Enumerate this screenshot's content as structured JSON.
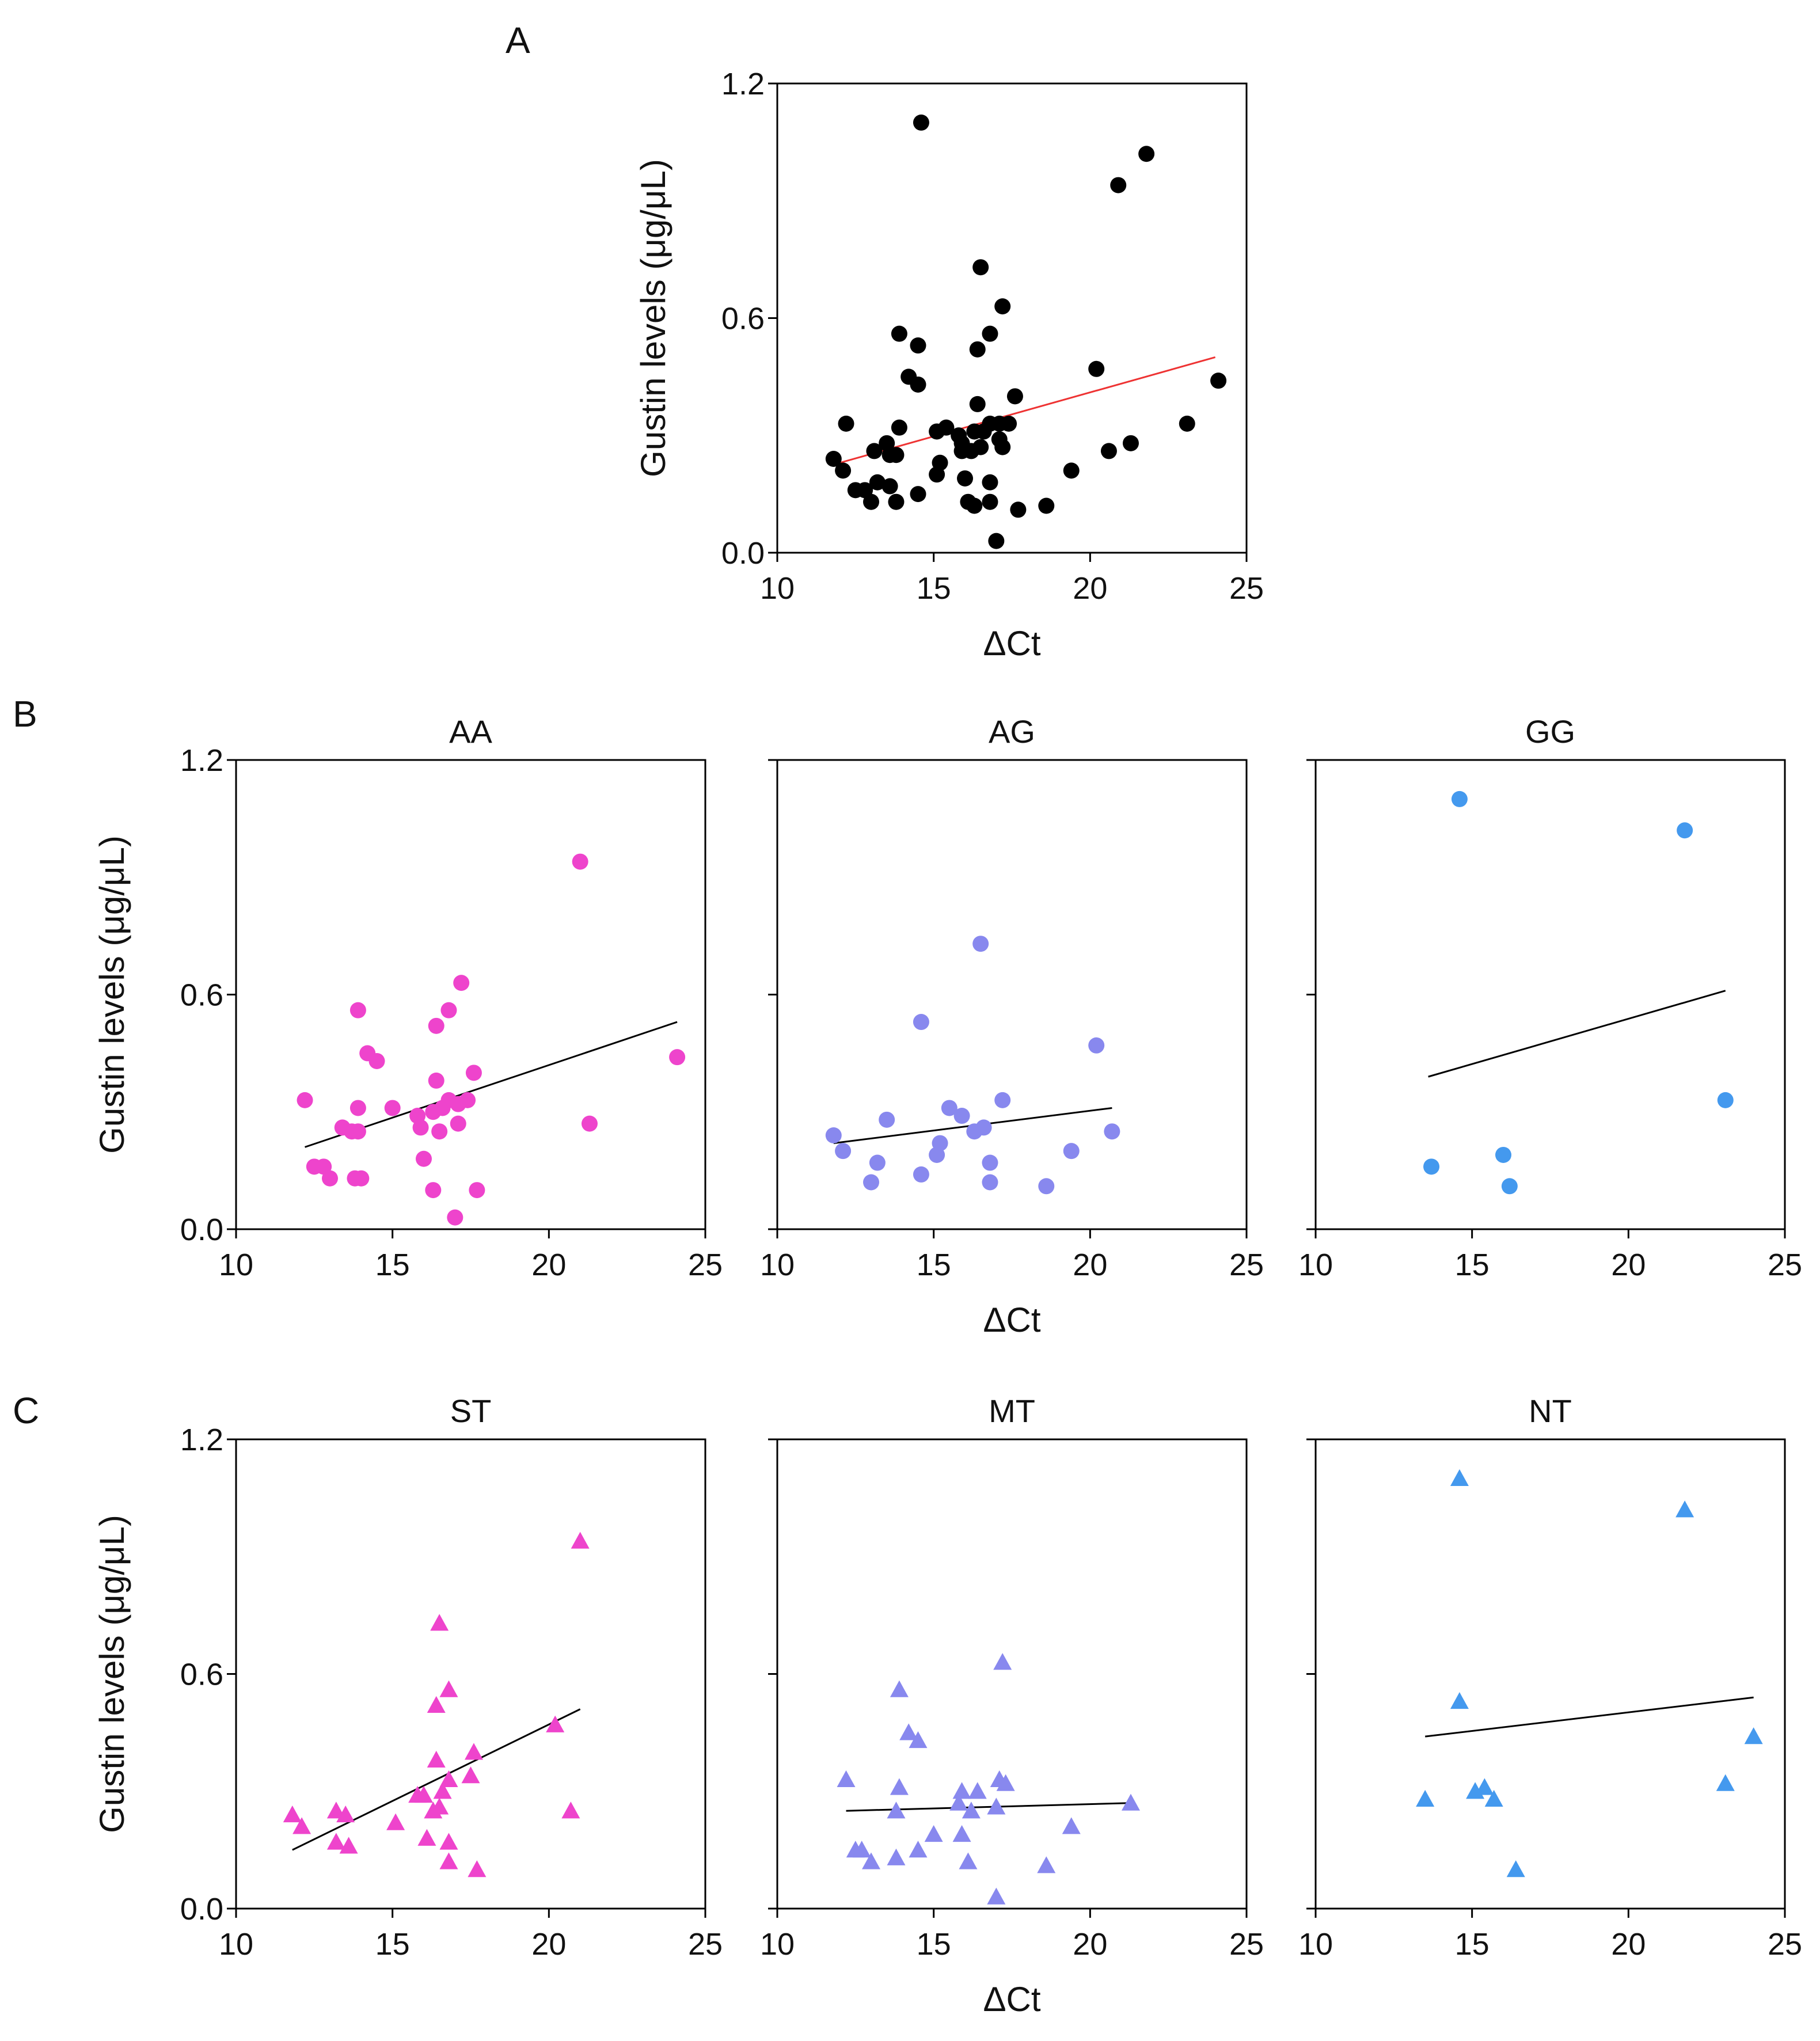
{
  "colors": {
    "black": "#000000",
    "pink": "#ee44cc",
    "lavender": "#8888ee",
    "blue": "#4499ee",
    "red_line": "#ee3333",
    "fit_line": "#000000"
  },
  "panel_labels": {
    "A": "A",
    "B": "B",
    "C": "C"
  },
  "chart_data": [
    {
      "id": "A",
      "type": "scatter",
      "title": "",
      "xlabel": "ΔCt",
      "ylabel": "Gustin levels (μg/μL)",
      "xlim": [
        10,
        25
      ],
      "ylim": [
        0,
        1.2
      ],
      "xticks": [
        10,
        15,
        20,
        25
      ],
      "xtick_labels": [
        "10",
        "15",
        "20",
        "25"
      ],
      "yticks": [
        0,
        0.6,
        1.2
      ],
      "ytick_labels": [
        "0.0",
        "0.6",
        "1.2"
      ],
      "marker": "circle",
      "color_key": "black",
      "line_color_key": "red_line",
      "fit": [
        [
          12,
          0.23
        ],
        [
          24,
          0.5
        ]
      ],
      "points": [
        [
          14.6,
          1.1
        ],
        [
          21.8,
          1.02
        ],
        [
          20.9,
          0.94
        ],
        [
          16.5,
          0.73
        ],
        [
          17.2,
          0.63
        ],
        [
          13.9,
          0.56
        ],
        [
          16.8,
          0.56
        ],
        [
          14.5,
          0.53
        ],
        [
          16.4,
          0.52
        ],
        [
          20.2,
          0.47
        ],
        [
          14.2,
          0.45
        ],
        [
          14.5,
          0.43
        ],
        [
          24.1,
          0.44
        ],
        [
          17.6,
          0.4
        ],
        [
          16.4,
          0.38
        ],
        [
          12.2,
          0.33
        ],
        [
          13.9,
          0.32
        ],
        [
          15.1,
          0.31
        ],
        [
          15.4,
          0.32
        ],
        [
          16.8,
          0.33
        ],
        [
          17.1,
          0.33
        ],
        [
          17.4,
          0.33
        ],
        [
          23.1,
          0.33
        ],
        [
          15.8,
          0.3
        ],
        [
          16.3,
          0.31
        ],
        [
          16.6,
          0.31
        ],
        [
          13.5,
          0.28
        ],
        [
          15.9,
          0.28
        ],
        [
          17.1,
          0.29
        ],
        [
          13.1,
          0.26
        ],
        [
          13.6,
          0.25
        ],
        [
          13.8,
          0.25
        ],
        [
          15.9,
          0.26
        ],
        [
          16.2,
          0.26
        ],
        [
          16.5,
          0.27
        ],
        [
          17.2,
          0.27
        ],
        [
          21.3,
          0.28
        ],
        [
          20.6,
          0.26
        ],
        [
          11.8,
          0.24
        ],
        [
          15.2,
          0.23
        ],
        [
          12.1,
          0.21
        ],
        [
          15.1,
          0.2
        ],
        [
          16,
          0.19
        ],
        [
          19.4,
          0.21
        ],
        [
          13.2,
          0.18
        ],
        [
          13.6,
          0.17
        ],
        [
          12.5,
          0.16
        ],
        [
          12.8,
          0.16
        ],
        [
          14.5,
          0.15
        ],
        [
          16.8,
          0.18
        ],
        [
          13,
          0.13
        ],
        [
          13.8,
          0.13
        ],
        [
          16.1,
          0.13
        ],
        [
          16.8,
          0.13
        ],
        [
          16.3,
          0.12
        ],
        [
          17.7,
          0.11
        ],
        [
          18.6,
          0.12
        ],
        [
          17,
          0.03
        ]
      ]
    },
    {
      "id": "B-AA",
      "type": "scatter",
      "title": "AA",
      "xlabel": "",
      "ylabel": "Gustin levels (μg/μL)",
      "xlim": [
        10,
        25
      ],
      "ylim": [
        0,
        1.2
      ],
      "xticks": [
        10,
        15,
        20,
        25
      ],
      "xtick_labels": [
        "10",
        "15",
        "20",
        "25"
      ],
      "yticks": [
        0,
        0.6,
        1.2
      ],
      "ytick_labels": [
        "0.0",
        "0.6",
        "1.2"
      ],
      "marker": "circle",
      "color_key": "pink",
      "line_color_key": "fit_line",
      "fit": [
        [
          12.2,
          0.21
        ],
        [
          24.1,
          0.53
        ]
      ],
      "points": [
        [
          21,
          0.94
        ],
        [
          17.2,
          0.63
        ],
        [
          13.9,
          0.56
        ],
        [
          16.8,
          0.56
        ],
        [
          16.4,
          0.52
        ],
        [
          14.2,
          0.45
        ],
        [
          14.5,
          0.43
        ],
        [
          24.1,
          0.44
        ],
        [
          17.6,
          0.4
        ],
        [
          16.4,
          0.38
        ],
        [
          12.2,
          0.33
        ],
        [
          13.9,
          0.31
        ],
        [
          15,
          0.31
        ],
        [
          16.8,
          0.33
        ],
        [
          17.1,
          0.32
        ],
        [
          17.4,
          0.33
        ],
        [
          15.8,
          0.29
        ],
        [
          16.3,
          0.3
        ],
        [
          16.6,
          0.31
        ],
        [
          13.4,
          0.26
        ],
        [
          13.7,
          0.25
        ],
        [
          13.9,
          0.25
        ],
        [
          15.9,
          0.26
        ],
        [
          16.5,
          0.25
        ],
        [
          17.1,
          0.27
        ],
        [
          21.3,
          0.27
        ],
        [
          16,
          0.18
        ],
        [
          12.5,
          0.16
        ],
        [
          12.8,
          0.16
        ],
        [
          13,
          0.13
        ],
        [
          13.8,
          0.13
        ],
        [
          14,
          0.13
        ],
        [
          16.3,
          0.1
        ],
        [
          17.7,
          0.1
        ],
        [
          17,
          0.03
        ]
      ]
    },
    {
      "id": "B-AG",
      "type": "scatter",
      "title": "AG",
      "xlabel": "ΔCt",
      "ylabel": "",
      "xlim": [
        10,
        25
      ],
      "ylim": [
        0,
        1.2
      ],
      "xticks": [
        10,
        15,
        20,
        25
      ],
      "xtick_labels": [
        "10",
        "15",
        "20",
        "25"
      ],
      "yticks": [
        0,
        0.6,
        1.2
      ],
      "ytick_labels": [],
      "marker": "circle",
      "color_key": "lavender",
      "line_color_key": "fit_line",
      "fit": [
        [
          11.8,
          0.22
        ],
        [
          20.7,
          0.31
        ]
      ],
      "points": [
        [
          16.5,
          0.73
        ],
        [
          14.6,
          0.53
        ],
        [
          20.2,
          0.47
        ],
        [
          17.2,
          0.33
        ],
        [
          15.5,
          0.31
        ],
        [
          15.9,
          0.29
        ],
        [
          13.5,
          0.28
        ],
        [
          16.3,
          0.25
        ],
        [
          16.6,
          0.26
        ],
        [
          20.7,
          0.25
        ],
        [
          11.8,
          0.24
        ],
        [
          15.2,
          0.22
        ],
        [
          12.1,
          0.2
        ],
        [
          15.1,
          0.19
        ],
        [
          19.4,
          0.2
        ],
        [
          13.2,
          0.17
        ],
        [
          16.8,
          0.17
        ],
        [
          14.6,
          0.14
        ],
        [
          13,
          0.12
        ],
        [
          16.8,
          0.12
        ],
        [
          18.6,
          0.11
        ]
      ]
    },
    {
      "id": "B-GG",
      "type": "scatter",
      "title": "GG",
      "xlabel": "",
      "ylabel": "",
      "xlim": [
        10,
        25
      ],
      "ylim": [
        0,
        1.2
      ],
      "xticks": [
        10,
        15,
        20,
        25
      ],
      "xtick_labels": [
        "10",
        "15",
        "20",
        "25"
      ],
      "yticks": [
        0,
        0.6,
        1.2
      ],
      "ytick_labels": [],
      "marker": "circle",
      "color_key": "blue",
      "line_color_key": "fit_line",
      "fit": [
        [
          13.6,
          0.39
        ],
        [
          23.1,
          0.61
        ]
      ],
      "points": [
        [
          14.6,
          1.1
        ],
        [
          21.8,
          1.02
        ],
        [
          23.1,
          0.33
        ],
        [
          13.7,
          0.16
        ],
        [
          16,
          0.19
        ],
        [
          16.2,
          0.11
        ]
      ]
    },
    {
      "id": "C-ST",
      "type": "scatter",
      "title": "ST",
      "xlabel": "",
      "ylabel": "Gustin levels (μg/μL)",
      "xlim": [
        10,
        25
      ],
      "ylim": [
        0,
        1.2
      ],
      "xticks": [
        10,
        15,
        20,
        25
      ],
      "xtick_labels": [
        "10",
        "15",
        "20",
        "25"
      ],
      "yticks": [
        0,
        0.6,
        1.2
      ],
      "ytick_labels": [
        "0.0",
        "0.6",
        "1.2"
      ],
      "marker": "triangle",
      "color_key": "pink",
      "line_color_key": "fit_line",
      "fit": [
        [
          11.8,
          0.15
        ],
        [
          21,
          0.51
        ]
      ],
      "points": [
        [
          21,
          0.94
        ],
        [
          16.5,
          0.73
        ],
        [
          16.8,
          0.56
        ],
        [
          16.4,
          0.52
        ],
        [
          20.2,
          0.47
        ],
        [
          17.6,
          0.4
        ],
        [
          16.4,
          0.38
        ],
        [
          17.5,
          0.34
        ],
        [
          16.8,
          0.33
        ],
        [
          15.8,
          0.29
        ],
        [
          16,
          0.29
        ],
        [
          16.6,
          0.3
        ],
        [
          11.8,
          0.24
        ],
        [
          13.2,
          0.25
        ],
        [
          13.5,
          0.24
        ],
        [
          16.3,
          0.25
        ],
        [
          16.5,
          0.26
        ],
        [
          20.7,
          0.25
        ],
        [
          12.1,
          0.21
        ],
        [
          15.1,
          0.22
        ],
        [
          13.2,
          0.17
        ],
        [
          13.6,
          0.16
        ],
        [
          16.1,
          0.18
        ],
        [
          16.8,
          0.17
        ],
        [
          16.8,
          0.12
        ],
        [
          17.7,
          0.1
        ]
      ]
    },
    {
      "id": "C-MT",
      "type": "scatter",
      "title": "MT",
      "xlabel": "ΔCt",
      "ylabel": "",
      "xlim": [
        10,
        25
      ],
      "ylim": [
        0,
        1.2
      ],
      "xticks": [
        10,
        15,
        20,
        25
      ],
      "xtick_labels": [
        "10",
        "15",
        "20",
        "25"
      ],
      "yticks": [
        0,
        0.6,
        1.2
      ],
      "ytick_labels": [],
      "marker": "triangle",
      "color_key": "lavender",
      "line_color_key": "fit_line",
      "fit": [
        [
          12.2,
          0.25
        ],
        [
          21.3,
          0.27
        ]
      ],
      "points": [
        [
          17.2,
          0.63
        ],
        [
          13.9,
          0.56
        ],
        [
          14.2,
          0.45
        ],
        [
          14.5,
          0.43
        ],
        [
          12.2,
          0.33
        ],
        [
          17.1,
          0.33
        ],
        [
          17.3,
          0.32
        ],
        [
          13.9,
          0.31
        ],
        [
          15.9,
          0.3
        ],
        [
          16.4,
          0.3
        ],
        [
          15.8,
          0.27
        ],
        [
          17,
          0.26
        ],
        [
          21.3,
          0.27
        ],
        [
          13.8,
          0.25
        ],
        [
          16.2,
          0.25
        ],
        [
          19.4,
          0.21
        ],
        [
          15,
          0.19
        ],
        [
          15.9,
          0.19
        ],
        [
          12.5,
          0.15
        ],
        [
          12.7,
          0.15
        ],
        [
          14.5,
          0.15
        ],
        [
          13,
          0.12
        ],
        [
          13.8,
          0.13
        ],
        [
          16.1,
          0.12
        ],
        [
          18.6,
          0.11
        ],
        [
          17,
          0.03
        ]
      ]
    },
    {
      "id": "C-NT",
      "type": "scatter",
      "title": "NT",
      "xlabel": "",
      "ylabel": "",
      "xlim": [
        10,
        25
      ],
      "ylim": [
        0,
        1.2
      ],
      "xticks": [
        10,
        15,
        20,
        25
      ],
      "xtick_labels": [
        "10",
        "15",
        "20",
        "25"
      ],
      "yticks": [
        0,
        0.6,
        1.2
      ],
      "ytick_labels": [],
      "marker": "triangle",
      "color_key": "blue",
      "line_color_key": "fit_line",
      "fit": [
        [
          13.5,
          0.44
        ],
        [
          24,
          0.54
        ]
      ],
      "points": [
        [
          14.6,
          1.1
        ],
        [
          21.8,
          1.02
        ],
        [
          14.6,
          0.53
        ],
        [
          24,
          0.44
        ],
        [
          23.1,
          0.32
        ],
        [
          13.5,
          0.28
        ],
        [
          15.1,
          0.3
        ],
        [
          15.4,
          0.31
        ],
        [
          15.7,
          0.28
        ],
        [
          16.4,
          0.1
        ]
      ]
    }
  ]
}
